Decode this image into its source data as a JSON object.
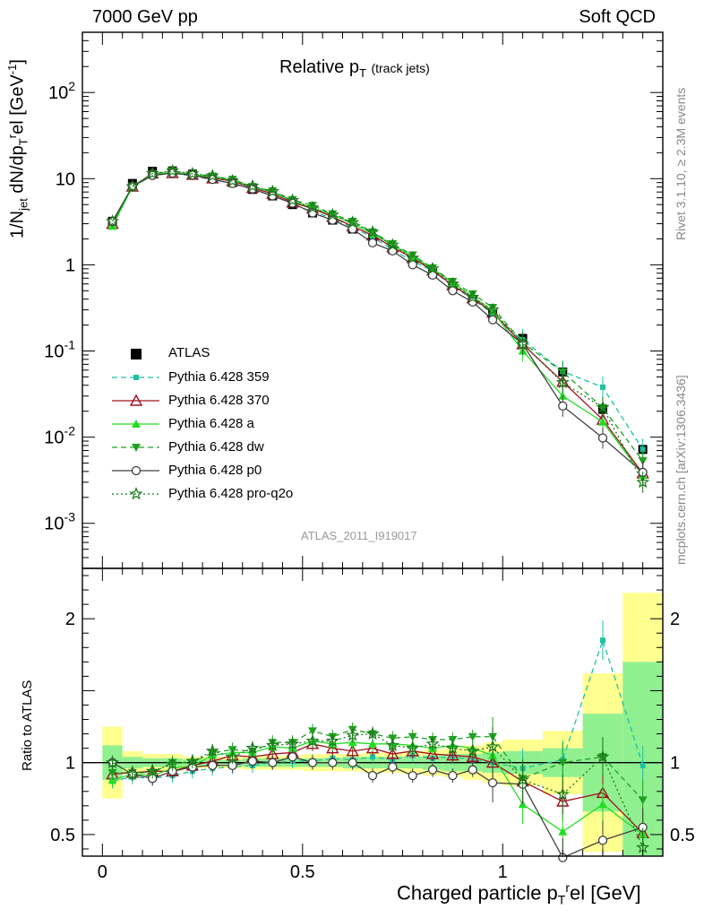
{
  "header": {
    "left": "7000 GeV pp",
    "right": "Soft QCD",
    "side_top": "Rivet 3.1.10, ≥ 2.3M events",
    "side_bottom": "mcplots.cern.ch [arXiv:1306.3436]"
  },
  "chart_data": [
    {
      "type": "line",
      "title_main": "Relative p",
      "title_sub": "T",
      "title_small": "(track jets)",
      "ylabel": "1/N_jet dN/dp_T^rel [GeV^-1]",
      "xlabel": "Charged particle p_T^rel [GeV]",
      "yscale": "log",
      "xlim": [
        -0.05,
        1.4
      ],
      "ylim": [
        0.0003,
        500
      ],
      "y_tick_labels": [
        "10^-3",
        "10^-2",
        "10^-1",
        "1",
        "10",
        "10^2"
      ],
      "watermark": "ATLAS_2011_I919017",
      "x": [
        0.025,
        0.075,
        0.125,
        0.175,
        0.225,
        0.275,
        0.325,
        0.375,
        0.425,
        0.475,
        0.525,
        0.575,
        0.625,
        0.675,
        0.725,
        0.775,
        0.825,
        0.875,
        0.925,
        0.975,
        1.05,
        1.15,
        1.25,
        1.35
      ],
      "series": [
        {
          "name": "ATLAS",
          "color": "#000000",
          "marker": "square-filled",
          "values": [
            3.2,
            8.8,
            12.2,
            12.3,
            11.3,
            10.0,
            9.0,
            7.5,
            6.3,
            5.0,
            4.0,
            3.3,
            2.6,
            2.0,
            1.5,
            1.1,
            0.8,
            0.55,
            0.39,
            0.27,
            0.14,
            0.057,
            0.021,
            0.0072
          ]
        },
        {
          "name": "Pythia 6.428 359",
          "color": "#20c0a0",
          "marker": "square-small",
          "dash": "6,4",
          "values": [
            2.8,
            8.0,
            10.9,
            11.6,
            10.7,
            9.7,
            8.9,
            7.5,
            6.4,
            5.1,
            4.1,
            3.5,
            2.7,
            2.1,
            1.5,
            1.1,
            0.85,
            0.57,
            0.4,
            0.27,
            0.135,
            0.058,
            0.038,
            0.0072
          ]
        },
        {
          "name": "Pythia 6.428 370",
          "color": "#a01020",
          "marker": "triangle-open",
          "values": [
            3.0,
            8.1,
            11.5,
            11.6,
            11.1,
            10.1,
            9.4,
            7.8,
            6.7,
            5.3,
            4.5,
            3.6,
            2.8,
            2.2,
            1.6,
            1.2,
            0.86,
            0.58,
            0.41,
            0.28,
            0.12,
            0.044,
            0.016,
            0.0038
          ]
        },
        {
          "name": "Pythia 6.428 a",
          "color": "#22dd22",
          "marker": "triangle-filled",
          "values": [
            2.8,
            8.1,
            11.2,
            11.8,
            11.1,
            10.5,
            9.6,
            8.0,
            7.0,
            5.5,
            4.6,
            3.8,
            3.0,
            2.3,
            1.7,
            1.25,
            0.9,
            0.62,
            0.43,
            0.29,
            0.1,
            0.03,
            0.015,
            0.0036
          ]
        },
        {
          "name": "Pythia 6.428 dw",
          "color": "#20a020",
          "marker": "triangle-down-filled",
          "dash": "6,4",
          "values": [
            3.0,
            8.2,
            11.3,
            12.3,
            11.3,
            10.7,
            9.8,
            8.1,
            7.2,
            5.7,
            4.9,
            3.9,
            3.2,
            2.4,
            1.75,
            1.3,
            0.92,
            0.64,
            0.46,
            0.32,
            0.125,
            0.057,
            0.022,
            0.0053
          ]
        },
        {
          "name": "Pythia 6.428 p0",
          "color": "#404040",
          "marker": "circle-open",
          "values": [
            3.2,
            8.1,
            10.9,
            11.6,
            11.0,
            9.8,
            8.8,
            7.6,
            6.3,
            5.2,
            4.0,
            3.3,
            2.6,
            1.8,
            1.45,
            1.0,
            0.76,
            0.5,
            0.37,
            0.23,
            0.12,
            0.023,
            0.0098,
            0.0039
          ]
        },
        {
          "name": "Pythia 6.428 pro-q2o",
          "color": "#1a7a1a",
          "marker": "star-open",
          "dash": "2,3",
          "values": [
            3.2,
            8.1,
            11.5,
            12.3,
            11.4,
            10.8,
            9.4,
            8.2,
            7.1,
            5.6,
            4.6,
            3.8,
            3.1,
            2.4,
            1.7,
            1.2,
            0.9,
            0.6,
            0.42,
            0.3,
            0.12,
            0.043,
            0.022,
            0.003
          ]
        }
      ]
    },
    {
      "type": "line",
      "ylabel": "Ratio to ATLAS",
      "xlabel": "Charged particle p_T^rel [GeV]",
      "xlim": [
        -0.05,
        1.4
      ],
      "ylim": [
        0.35,
        2.35
      ],
      "y_tick_labels": [
        "0.5",
        "1",
        "2"
      ],
      "x_tick_labels": [
        "0",
        "0.5",
        "1"
      ],
      "uncertainty_bands": {
        "x_edges": [
          0.0,
          0.05,
          0.1,
          0.15,
          0.2,
          0.25,
          0.3,
          0.35,
          0.4,
          0.45,
          0.5,
          0.55,
          0.6,
          0.65,
          0.7,
          0.75,
          0.8,
          0.85,
          0.9,
          0.95,
          1.0,
          1.1,
          1.2,
          1.3,
          1.4
        ],
        "yellow_halfwidth": [
          0.25,
          0.08,
          0.06,
          0.06,
          0.04,
          0.04,
          0.04,
          0.05,
          0.05,
          0.05,
          0.06,
          0.06,
          0.06,
          0.07,
          0.07,
          0.08,
          0.09,
          0.1,
          0.12,
          0.14,
          0.16,
          0.22,
          0.62,
          1.18
        ],
        "green_halfwidth": [
          0.12,
          0.04,
          0.03,
          0.03,
          0.02,
          0.02,
          0.02,
          0.03,
          0.03,
          0.03,
          0.03,
          0.03,
          0.04,
          0.04,
          0.04,
          0.04,
          0.05,
          0.06,
          0.06,
          0.07,
          0.08,
          0.1,
          0.34,
          0.7
        ]
      },
      "x": [
        0.025,
        0.075,
        0.125,
        0.175,
        0.225,
        0.275,
        0.325,
        0.375,
        0.425,
        0.475,
        0.525,
        0.575,
        0.625,
        0.675,
        0.725,
        0.775,
        0.825,
        0.875,
        0.925,
        0.975,
        1.05,
        1.15,
        1.25,
        1.35
      ],
      "series": [
        {
          "name": "Pythia 6.428 359",
          "values": [
            0.87,
            0.9,
            0.89,
            0.91,
            0.94,
            0.96,
            0.97,
            0.98,
            1.0,
            1.01,
            1.01,
            1.03,
            1.02,
            1.04,
            1.02,
            1.05,
            1.03,
            1.04,
            1.02,
            1.0,
            0.96,
            1.02,
            1.85,
            0.98
          ]
        },
        {
          "name": "Pythia 6.428 370",
          "values": [
            0.92,
            0.93,
            0.94,
            0.94,
            0.98,
            1.01,
            1.05,
            1.04,
            1.06,
            1.07,
            1.13,
            1.1,
            1.08,
            1.1,
            1.06,
            1.08,
            1.06,
            1.05,
            1.04,
            1.0,
            0.87,
            0.73,
            0.79,
            0.51
          ]
        },
        {
          "name": "Pythia 6.428 a",
          "values": [
            0.88,
            0.92,
            0.91,
            0.96,
            0.98,
            1.05,
            1.07,
            1.07,
            1.11,
            1.1,
            1.15,
            1.13,
            1.14,
            1.13,
            1.13,
            1.12,
            1.1,
            1.12,
            1.1,
            1.05,
            0.71,
            0.52,
            0.71,
            0.5
          ]
        },
        {
          "name": "Pythia 6.428 dw",
          "values": [
            0.93,
            0.93,
            0.93,
            1.0,
            1.0,
            1.07,
            1.09,
            1.08,
            1.14,
            1.14,
            1.22,
            1.18,
            1.23,
            1.2,
            1.17,
            1.18,
            1.16,
            1.16,
            1.18,
            1.18,
            0.89,
            1.0,
            1.04,
            0.74
          ]
        },
        {
          "name": "Pythia 6.428 p0",
          "values": [
            1.0,
            0.92,
            0.89,
            0.94,
            0.97,
            0.98,
            0.98,
            1.01,
            1.0,
            1.04,
            1.0,
            1.0,
            1.0,
            0.91,
            0.97,
            0.91,
            0.95,
            0.91,
            0.95,
            0.86,
            0.85,
            0.34,
            0.46,
            0.55
          ]
        },
        {
          "name": "Pythia 6.428 pro-q2o",
          "values": [
            1.0,
            0.92,
            0.94,
            0.99,
            1.01,
            1.08,
            1.04,
            1.1,
            1.12,
            1.13,
            1.15,
            1.15,
            1.19,
            1.2,
            1.12,
            1.1,
            1.13,
            1.1,
            1.08,
            1.11,
            0.88,
            0.78,
            1.04,
            0.41
          ]
        }
      ]
    }
  ]
}
